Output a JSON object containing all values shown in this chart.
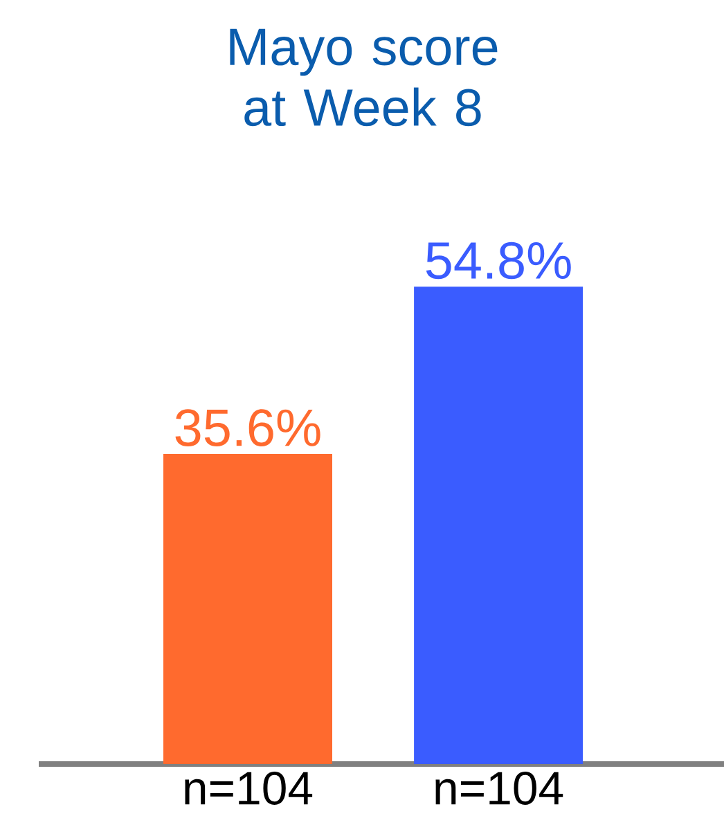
{
  "chart_data": {
    "type": "bar",
    "title": "Mayo score at Week 8",
    "categories": [
      "n=104",
      "n=104"
    ],
    "values": [
      35.6,
      54.8
    ],
    "colors": [
      "#ff6a2e",
      "#3a5cff"
    ],
    "data_labels": true,
    "value_labels": [
      "35.6%",
      "54.8%"
    ]
  }
}
